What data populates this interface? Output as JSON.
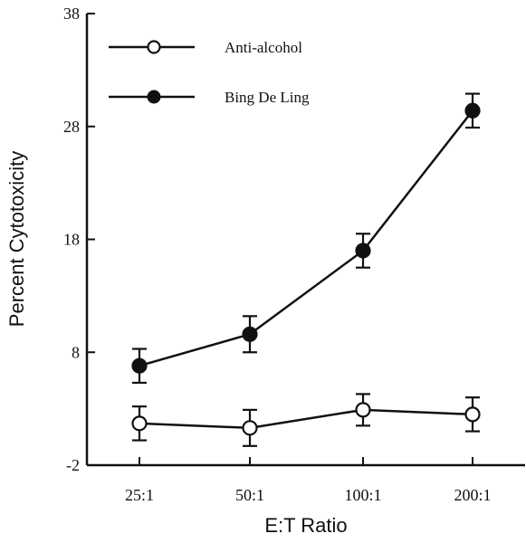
{
  "chart_data": {
    "type": "line",
    "title": "",
    "xlabel": "E:T Ratio",
    "ylabel": "Percent Cytotoxicity",
    "categories": [
      "25:1",
      "50:1",
      "100:1",
      "200:1"
    ],
    "ylim": [
      -2,
      38
    ],
    "yticks": [
      "-2",
      "8",
      "18",
      "28",
      "38"
    ],
    "grid": false,
    "legend_position": "top-left",
    "series": [
      {
        "name": "Anti-alcohol",
        "marker": "open-circle",
        "values": [
          1.7,
          1.3,
          2.9,
          2.5
        ],
        "errors": [
          1.5,
          1.6,
          1.4,
          1.5
        ]
      },
      {
        "name": "Bing De Ling",
        "marker": "filled-circle",
        "values": [
          6.8,
          9.6,
          17.0,
          29.4
        ],
        "errors": [
          1.5,
          1.6,
          1.5,
          1.5
        ]
      }
    ]
  }
}
